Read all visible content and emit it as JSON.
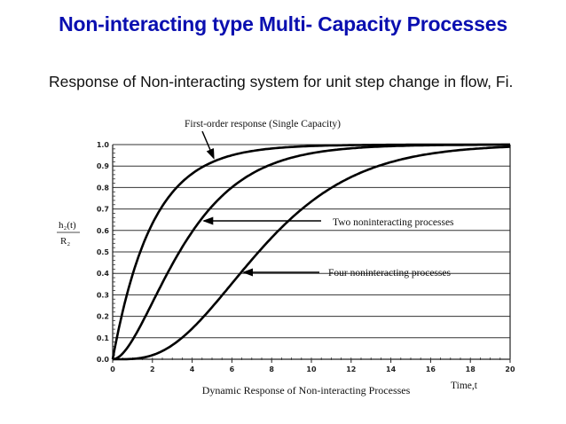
{
  "slide": {
    "title": "Non-interacting type Multi- Capacity Processes",
    "subtitle": "Response of Non-interacting system for unit step change in flow, Fi."
  },
  "chart_data": {
    "type": "line",
    "title": "Dynamic Response of Non-interacting Processes",
    "xlabel": "Time,t",
    "ylabel": "h2(t) / R2",
    "xlim": [
      0,
      20
    ],
    "ylim": [
      0,
      1.0
    ],
    "x_ticks": [
      0,
      2,
      4,
      6,
      8,
      10,
      12,
      14,
      16,
      18,
      20
    ],
    "y_ticks": [
      0.0,
      0.1,
      0.2,
      0.3,
      0.4,
      0.5,
      0.6,
      0.7,
      0.8,
      0.9,
      1.0
    ],
    "grid": "horizontal",
    "x": [
      0,
      1,
      2,
      3,
      4,
      5,
      6,
      7,
      8,
      9,
      10,
      12,
      14,
      16,
      18,
      20
    ],
    "series": [
      {
        "name": "First-order response (Single Capacity)",
        "values": [
          0.0,
          0.39,
          0.63,
          0.78,
          0.86,
          0.92,
          0.95,
          0.97,
          0.98,
          0.99,
          0.99,
          1.0,
          1.0,
          1.0,
          1.0,
          1.0
        ]
      },
      {
        "name": "Two noninteracting processes",
        "values": [
          0.0,
          0.09,
          0.26,
          0.44,
          0.59,
          0.71,
          0.8,
          0.86,
          0.91,
          0.94,
          0.96,
          0.98,
          0.99,
          1.0,
          1.0,
          1.0
        ]
      },
      {
        "name": "Four noninteracting processes",
        "values": [
          0.0,
          0.0,
          0.02,
          0.07,
          0.14,
          0.24,
          0.35,
          0.46,
          0.57,
          0.66,
          0.73,
          0.85,
          0.92,
          0.96,
          0.98,
          0.99
        ]
      }
    ],
    "annotations": [
      {
        "text": "First-order response (Single Capacity)",
        "points_to": {
          "x": 5,
          "y": 0.92
        }
      },
      {
        "text": "Two noninteracting processes",
        "points_to": {
          "x": 4.5,
          "y": 0.65
        }
      },
      {
        "text": "Four noninteracting processes",
        "points_to": {
          "x": 6.5,
          "y": 0.4
        }
      }
    ]
  }
}
